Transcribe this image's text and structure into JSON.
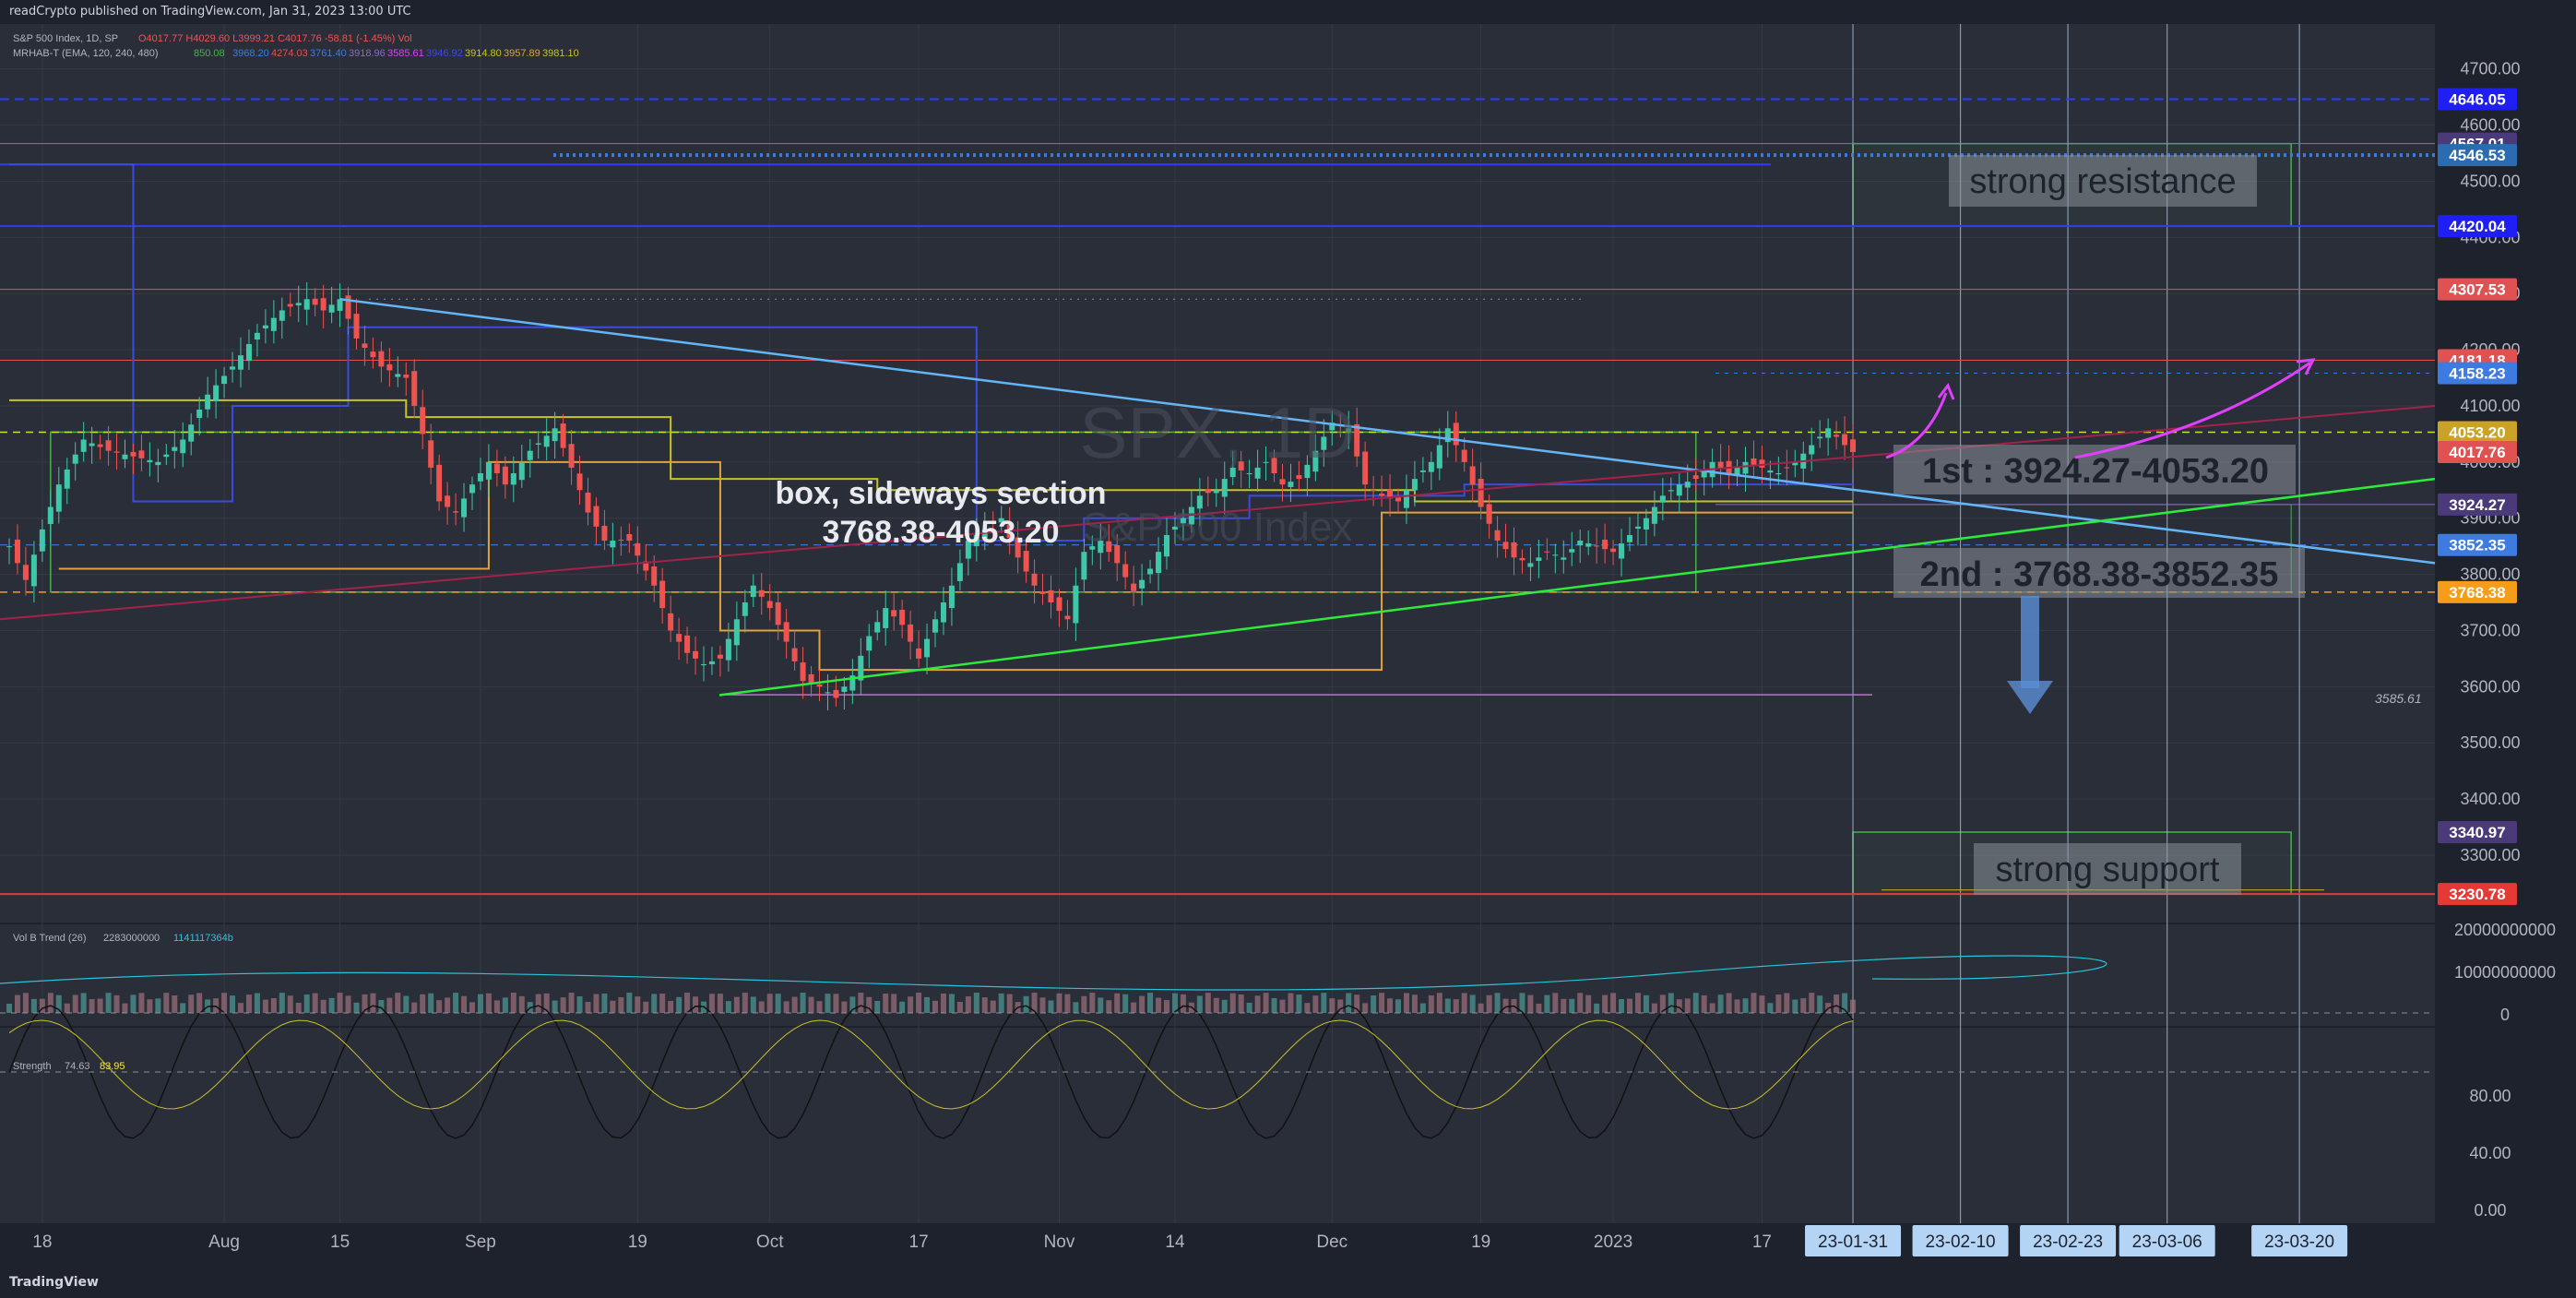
{
  "header": {
    "publish_text": "readCrypto published on TradingView.com, Jan 31, 2023 13:00 UTC"
  },
  "legend": {
    "symbol": "S&P 500 Index, 1D, SP",
    "ohlc": "O4017.77  H4029.60  L3999.21  C4017.76  -58.81 (-1.45%)  Vol",
    "indicator": "MRHAB-T (EMA, 120, 240, 480)",
    "indicator_values": [
      "850.08",
      "3968.20",
      "4274.03",
      "3761.40",
      "3918.96",
      "3585.61",
      "3946.92",
      "3914.80",
      "3957.89",
      "3981.10"
    ],
    "volume_indicator": "Vol B Trend (26)",
    "volume_values": [
      "2283000000",
      "1141117364b"
    ],
    "strength_indicator": "Strength",
    "strength_values": [
      "74.63",
      "83.95"
    ]
  },
  "watermark": {
    "symbol": "SPX, 1D",
    "name": "S&P 500 Index"
  },
  "annotations": {
    "box_title": "box, sideways section",
    "box_range": "3768.38-4053.20",
    "first": "1st : 3924.27-4053.20",
    "second": "2nd : 3768.38-3852.35",
    "resistance": "strong resistance",
    "support": "strong support",
    "low_mark": "3585.61"
  },
  "colors": {
    "background": "#2a2e39",
    "grid": "#363a45",
    "up": "#26a69a",
    "down": "#ef5350",
    "box_green": "#4caf50",
    "trend_blue": "#64b5f6",
    "trend_green": "#2eea3c",
    "trend_maroon": "#a3224a",
    "level_blue": "#1f1ff5",
    "magenta": "#e040fb"
  },
  "chart_data": {
    "type": "candlestick",
    "y_axis": {
      "min": 3180,
      "max": 4780,
      "ticks": [
        "4700.00",
        "4600.00",
        "4500.00",
        "4400.00",
        "4300.00",
        "4200.00",
        "4100.00",
        "4000.00",
        "3900.00",
        "3800.00",
        "3700.00",
        "3600.00",
        "3500.00",
        "3400.00",
        "3300.00"
      ],
      "tick_values": [
        4700,
        4600,
        4500,
        4400,
        4300,
        4200,
        4100,
        4000,
        3900,
        3800,
        3700,
        3600,
        3500,
        3400,
        3300
      ]
    },
    "x_axis": {
      "labels": [
        "18",
        "Aug",
        "15",
        "Sep",
        "19",
        "Oct",
        "17",
        "Nov",
        "14",
        "Dec",
        "19",
        "2023",
        "17"
      ],
      "label_index": [
        4,
        26,
        40,
        57,
        76,
        92,
        110,
        127,
        141,
        160,
        178,
        194,
        212
      ],
      "total_bars": 280,
      "future_dates": [
        "23-01-31",
        "23-02-10",
        "23-02-23",
        "23-03-06",
        "23-03-20"
      ],
      "future_date_index": [
        223,
        236,
        249,
        261,
        277
      ]
    },
    "price_path": [
      [
        0,
        3850
      ],
      [
        2,
        3790
      ],
      [
        4,
        3880
      ],
      [
        6,
        3960
      ],
      [
        9,
        4040
      ],
      [
        12,
        4020
      ],
      [
        15,
        4010
      ],
      [
        18,
        4000
      ],
      [
        21,
        4040
      ],
      [
        24,
        4120
      ],
      [
        27,
        4170
      ],
      [
        30,
        4230
      ],
      [
        33,
        4270
      ],
      [
        36,
        4290
      ],
      [
        38,
        4270
      ],
      [
        40,
        4290
      ],
      [
        42,
        4220
      ],
      [
        45,
        4170
      ],
      [
        48,
        4150
      ],
      [
        50,
        4050
      ],
      [
        52,
        3930
      ],
      [
        54,
        3910
      ],
      [
        56,
        3960
      ],
      [
        58,
        4000
      ],
      [
        60,
        3960
      ],
      [
        63,
        4020
      ],
      [
        66,
        4060
      ],
      [
        68,
        3990
      ],
      [
        70,
        3910
      ],
      [
        72,
        3860
      ],
      [
        75,
        3860
      ],
      [
        78,
        3780
      ],
      [
        80,
        3700
      ],
      [
        82,
        3660
      ],
      [
        84,
        3640
      ],
      [
        86,
        3650
      ],
      [
        88,
        3720
      ],
      [
        90,
        3780
      ],
      [
        92,
        3740
      ],
      [
        94,
        3680
      ],
      [
        96,
        3610
      ],
      [
        98,
        3600
      ],
      [
        100,
        3580
      ],
      [
        102,
        3620
      ],
      [
        104,
        3690
      ],
      [
        106,
        3740
      ],
      [
        108,
        3710
      ],
      [
        110,
        3650
      ],
      [
        112,
        3720
      ],
      [
        114,
        3780
      ],
      [
        116,
        3860
      ],
      [
        118,
        3880
      ],
      [
        120,
        3900
      ],
      [
        122,
        3830
      ],
      [
        124,
        3780
      ],
      [
        126,
        3750
      ],
      [
        128,
        3720
      ],
      [
        130,
        3840
      ],
      [
        132,
        3860
      ],
      [
        134,
        3820
      ],
      [
        136,
        3770
      ],
      [
        138,
        3810
      ],
      [
        140,
        3870
      ],
      [
        142,
        3900
      ],
      [
        144,
        3940
      ],
      [
        146,
        3950
      ],
      [
        148,
        3990
      ],
      [
        150,
        3980
      ],
      [
        152,
        4000
      ],
      [
        154,
        3960
      ],
      [
        156,
        3970
      ],
      [
        158,
        4020
      ],
      [
        160,
        4070
      ],
      [
        162,
        4060
      ],
      [
        164,
        3960
      ],
      [
        166,
        3940
      ],
      [
        168,
        3930
      ],
      [
        170,
        3970
      ],
      [
        172,
        4000
      ],
      [
        174,
        4060
      ],
      [
        176,
        4000
      ],
      [
        178,
        3920
      ],
      [
        180,
        3860
      ],
      [
        182,
        3830
      ],
      [
        184,
        3820
      ],
      [
        186,
        3840
      ],
      [
        188,
        3830
      ],
      [
        190,
        3860
      ],
      [
        192,
        3850
      ],
      [
        194,
        3840
      ],
      [
        196,
        3870
      ],
      [
        198,
        3900
      ],
      [
        200,
        3940
      ],
      [
        202,
        3960
      ],
      [
        204,
        3970
      ],
      [
        206,
        4000
      ],
      [
        208,
        3980
      ],
      [
        210,
        4000
      ],
      [
        212,
        3990
      ],
      [
        214,
        3980
      ],
      [
        216,
        4000
      ],
      [
        218,
        4030
      ],
      [
        220,
        4060
      ],
      [
        222,
        4030
      ],
      [
        223,
        4017.76
      ]
    ],
    "price_labels": [
      {
        "value": 4646.05,
        "text": "4646.05",
        "color": "#1f1ff5"
      },
      {
        "value": 4567.01,
        "text": "4567.01",
        "color": "#4a3a7a"
      },
      {
        "value": 4546.53,
        "text": "4546.53",
        "color": "#2b6cb0"
      },
      {
        "value": 4420.04,
        "text": "4420.04",
        "color": "#1f1ff5"
      },
      {
        "value": 4307.53,
        "text": "4307.53",
        "color": "#e05252"
      },
      {
        "value": 4181.18,
        "text": "4181.18",
        "color": "#e05252"
      },
      {
        "value": 4158.23,
        "text": "4158.23",
        "color": "#3d7be0"
      },
      {
        "value": 4053.2,
        "text": "4053.20",
        "color": "#c9a227"
      },
      {
        "value": 4017.76,
        "text": "4017.76",
        "color": "#e05252"
      },
      {
        "value": 3924.27,
        "text": "3924.27",
        "color": "#4a3a7a"
      },
      {
        "value": 3852.35,
        "text": "3852.35",
        "color": "#3d7be0"
      },
      {
        "value": 3768.38,
        "text": "3768.38",
        "color": "#f59c1a"
      },
      {
        "value": 3340.97,
        "text": "3340.97",
        "color": "#4a3a7a"
      },
      {
        "value": 3230.78,
        "text": "3230.78",
        "color": "#e53935"
      }
    ],
    "volume_axis": {
      "ticks": [
        "20000000000",
        "10000000000",
        "0"
      ]
    },
    "strength_axis": {
      "ticks": [
        "80.00",
        "40.00",
        "0.00"
      ]
    }
  },
  "footer": {
    "brand": "TradingView"
  }
}
